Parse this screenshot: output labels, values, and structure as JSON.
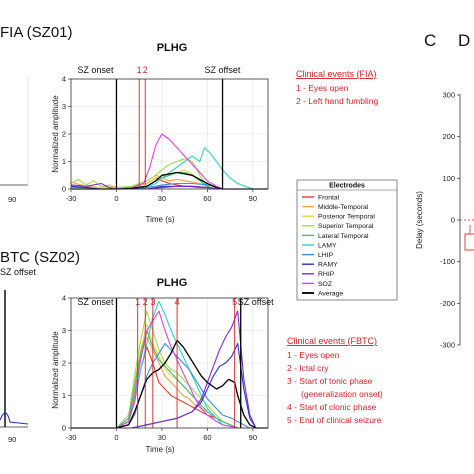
{
  "panel_titles": {
    "top": "FIA (SZ01)",
    "bottom": "BTC (SZ02)",
    "c_letter": "C",
    "c_partial": "D"
  },
  "left_fragments": {
    "top_tick": "90",
    "bottom_tick": "90",
    "bottom_marker": "SZ offset"
  },
  "colors": {
    "event_red": "#d61f26",
    "axis": "#333333",
    "grid": "#e2e2e2"
  },
  "clinical_events": [
    {
      "title": "Clinical events (FIA)",
      "items": [
        "1 - Eyes open",
        "2 - Left hand fumbling"
      ]
    },
    {
      "title": "Clinical events (FBTC)",
      "items": [
        "1 - Eyes open",
        "2 - Ictal cry",
        "3 - Start of tonic phase",
        "(generalization onset)",
        "4 - Start of clonic phase",
        "5 - End of clinical seizure"
      ]
    }
  ],
  "legend": {
    "title": "Electrodes",
    "items": [
      {
        "name": "Frontal",
        "color": "#e8392c"
      },
      {
        "name": "Middle-Temporal",
        "color": "#f7a24b"
      },
      {
        "name": "Posterior Temporal",
        "color": "#f2d63b"
      },
      {
        "name": "Superior Temporal",
        "color": "#a7d84a"
      },
      {
        "name": "Lateral Temporal",
        "color": "#33c27a"
      },
      {
        "name": "LAMY",
        "color": "#2fd4c8"
      },
      {
        "name": "LHIP",
        "color": "#3c8ee0"
      },
      {
        "name": "RAMY",
        "color": "#2432c9"
      },
      {
        "name": "RHIP",
        "color": "#7d2ad6"
      },
      {
        "name": "SOZ",
        "color": "#e040e8"
      },
      {
        "name": "Average",
        "color": "#000000"
      }
    ]
  },
  "chart_data": [
    {
      "type": "line",
      "title": "PLHG",
      "xlabel": "Time (s)",
      "ylabel": "Normalized amplitude",
      "xlim": [
        -30,
        100
      ],
      "ylim": [
        0,
        4
      ],
      "xticks": [
        -30,
        0,
        30,
        60,
        90
      ],
      "yticks": [
        0,
        1,
        2,
        3,
        4
      ],
      "grid": true,
      "vlines": [
        {
          "label": "SZ onset",
          "x": 0,
          "color": "#000000"
        },
        {
          "label": "SZ offset",
          "x": 70,
          "color": "#000000"
        }
      ],
      "events": [
        {
          "label": "1",
          "x": 15
        },
        {
          "label": "2",
          "x": 19
        }
      ],
      "series": [
        {
          "name": "Frontal",
          "x": [
            -30,
            -10,
            0,
            10,
            20,
            26,
            30,
            35,
            40,
            45,
            50,
            55,
            60,
            66,
            70,
            80,
            100
          ],
          "values": [
            0,
            0,
            0,
            0.05,
            0.2,
            0.4,
            0.3,
            0.2,
            0.15,
            0.1,
            0.08,
            0.05,
            0.05,
            0,
            0,
            0,
            0
          ]
        },
        {
          "name": "Middle-Temporal",
          "x": [
            -30,
            -20,
            -10,
            -5,
            0,
            10,
            20,
            26,
            30,
            35,
            40,
            45,
            50,
            55,
            60,
            66,
            70,
            80,
            100
          ],
          "values": [
            0.25,
            0.1,
            0.05,
            0.15,
            0.05,
            0.05,
            0.3,
            0.5,
            0.4,
            0.3,
            0.35,
            0.3,
            0.25,
            0.2,
            0.1,
            0,
            0,
            0,
            0
          ]
        },
        {
          "name": "Posterior Temporal",
          "x": [
            -30,
            -20,
            -10,
            0,
            10,
            20,
            26,
            30,
            35,
            40,
            45,
            50,
            55,
            60,
            66,
            70,
            80,
            100
          ],
          "values": [
            0.1,
            0.05,
            0.05,
            0,
            0.05,
            0.2,
            0.4,
            0.5,
            0.5,
            0.6,
            0.7,
            0.55,
            0.3,
            0.1,
            0,
            0,
            0,
            0
          ]
        },
        {
          "name": "Superior Temporal",
          "x": [
            -30,
            -25,
            -20,
            -15,
            -10,
            0,
            10,
            20,
            26,
            30,
            35,
            40,
            45,
            50,
            55,
            60,
            66,
            70,
            80,
            100
          ],
          "values": [
            0.2,
            0.35,
            0.15,
            0.3,
            0.1,
            0.05,
            0.1,
            0.3,
            0.5,
            0.7,
            0.9,
            1.0,
            1.1,
            1.0,
            0.5,
            0.1,
            0,
            0,
            0,
            0
          ]
        },
        {
          "name": "Lateral Temporal",
          "x": [
            -30,
            -20,
            -10,
            0,
            10,
            20,
            26,
            30,
            35,
            40,
            45,
            50,
            55,
            60,
            66,
            70,
            80,
            100
          ],
          "values": [
            0.05,
            0.05,
            0,
            0,
            0.05,
            0.1,
            0.3,
            0.4,
            0.5,
            0.6,
            0.6,
            0.5,
            0.3,
            0.1,
            0,
            0,
            0,
            0
          ]
        },
        {
          "name": "LAMY",
          "x": [
            -30,
            -10,
            0,
            10,
            20,
            26,
            30,
            35,
            40,
            45,
            50,
            55,
            58,
            62,
            66,
            70,
            75,
            80,
            85,
            90,
            100
          ],
          "values": [
            0,
            0,
            0,
            0,
            0.05,
            0.2,
            0.4,
            0.6,
            0.8,
            1.0,
            1.2,
            1.0,
            1.5,
            1.3,
            1.0,
            0.7,
            0.4,
            0.2,
            0.1,
            0,
            0
          ]
        },
        {
          "name": "LHIP",
          "x": [
            -30,
            -10,
            0,
            10,
            20,
            26,
            30,
            40,
            50,
            60,
            66,
            70,
            80,
            100
          ],
          "values": [
            0,
            0,
            0,
            0,
            0.05,
            0.1,
            0.15,
            0.2,
            0.2,
            0.15,
            0.1,
            0,
            0,
            0
          ]
        },
        {
          "name": "RAMY",
          "x": [
            -30,
            -20,
            -10,
            0,
            10,
            20,
            26,
            30,
            40,
            50,
            60,
            66,
            70,
            80,
            100
          ],
          "values": [
            0.1,
            0.05,
            0,
            0,
            0,
            0,
            0.05,
            0.1,
            0.1,
            0.1,
            0.05,
            0,
            0,
            0,
            0
          ]
        },
        {
          "name": "RHIP",
          "x": [
            -30,
            -20,
            -10,
            -5,
            0,
            10,
            20,
            30,
            40,
            50,
            60,
            66,
            70,
            80,
            100
          ],
          "values": [
            0.15,
            0.1,
            0.2,
            0.05,
            0,
            0,
            0,
            0.05,
            0.1,
            0.1,
            0.05,
            0,
            0,
            0,
            0
          ]
        },
        {
          "name": "SOZ",
          "x": [
            -30,
            -10,
            0,
            10,
            18,
            22,
            26,
            30,
            35,
            40,
            45,
            50,
            55,
            60,
            66,
            70,
            80,
            100
          ],
          "values": [
            0,
            0,
            0,
            0.05,
            0.2,
            0.8,
            1.6,
            2.0,
            1.8,
            1.5,
            1.2,
            0.9,
            0.6,
            0.3,
            0.1,
            0,
            0,
            0
          ]
        },
        {
          "name": "Average",
          "x": [
            -30,
            -10,
            0,
            10,
            20,
            26,
            30,
            35,
            40,
            45,
            50,
            55,
            60,
            66,
            70,
            80,
            100
          ],
          "values": [
            0,
            0,
            0,
            0.02,
            0.1,
            0.3,
            0.5,
            0.55,
            0.6,
            0.55,
            0.5,
            0.35,
            0.2,
            0.05,
            0,
            0,
            0
          ]
        }
      ]
    },
    {
      "type": "line",
      "title": "PLHG",
      "xlabel": "Time (s)",
      "ylabel": "Normalized amplitude",
      "xlim": [
        -30,
        100
      ],
      "ylim": [
        0,
        4
      ],
      "xticks": [
        -30,
        0,
        30,
        60,
        90
      ],
      "yticks": [
        0,
        1,
        2,
        3,
        4
      ],
      "grid": true,
      "vlines": [
        {
          "label": "SZ onset",
          "x": 0,
          "color": "#000000"
        },
        {
          "label": "SZ offset",
          "x": 82,
          "color": "#000000"
        }
      ],
      "events": [
        {
          "label": "1",
          "x": 14
        },
        {
          "label": "2",
          "x": 19
        },
        {
          "label": "3",
          "x": 24
        },
        {
          "label": "4",
          "x": 40
        },
        {
          "label": "5",
          "x": 78
        }
      ],
      "series": [
        {
          "name": "Frontal",
          "x": [
            -30,
            0,
            8,
            12,
            16,
            20,
            24,
            28,
            32,
            36,
            40,
            44,
            48,
            52,
            56,
            60,
            66,
            70,
            80,
            100
          ],
          "values": [
            0,
            0,
            0.2,
            0.8,
            1.8,
            2.5,
            2.0,
            1.4,
            1.2,
            1.0,
            0.9,
            0.8,
            0.7,
            0.6,
            0.5,
            0.4,
            0.3,
            0.2,
            0,
            0
          ]
        },
        {
          "name": "Middle-Temporal",
          "x": [
            -30,
            0,
            8,
            12,
            16,
            20,
            24,
            28,
            32,
            36,
            40,
            44,
            48,
            52,
            56,
            60,
            66,
            70,
            80,
            100
          ],
          "values": [
            0,
            0,
            0.3,
            1.2,
            2.2,
            2.8,
            2.4,
            2.0,
            1.6,
            1.4,
            1.2,
            1.0,
            0.9,
            0.7,
            0.6,
            0.5,
            0.3,
            0.2,
            0,
            0
          ]
        },
        {
          "name": "Posterior Temporal",
          "x": [
            -30,
            0,
            8,
            12,
            16,
            20,
            24,
            28,
            32,
            36,
            40,
            44,
            48,
            52,
            56,
            60,
            66,
            70,
            80,
            100
          ],
          "values": [
            0,
            0,
            0.3,
            1.4,
            2.4,
            3.2,
            2.6,
            2.2,
            1.8,
            1.6,
            1.5,
            1.3,
            1.1,
            0.9,
            0.7,
            0.5,
            0.3,
            0.2,
            0,
            0
          ]
        },
        {
          "name": "Superior Temporal",
          "x": [
            -30,
            0,
            8,
            12,
            16,
            20,
            24,
            28,
            32,
            36,
            40,
            44,
            48,
            52,
            56,
            60,
            66,
            70,
            80,
            100
          ],
          "values": [
            0,
            0,
            0.4,
            1.6,
            2.7,
            3.6,
            3.0,
            2.4,
            2.0,
            1.8,
            1.7,
            1.5,
            1.3,
            1.1,
            0.9,
            0.7,
            0.4,
            0.2,
            0,
            0
          ]
        },
        {
          "name": "Lateral Temporal",
          "x": [
            -30,
            0,
            8,
            12,
            16,
            20,
            24,
            28,
            32,
            36,
            40,
            44,
            48,
            52,
            56,
            60,
            66,
            70,
            80,
            100
          ],
          "values": [
            0,
            0,
            0.3,
            1.3,
            2.3,
            3.0,
            2.5,
            2.1,
            1.9,
            1.7,
            1.5,
            1.3,
            1.1,
            0.9,
            0.7,
            0.5,
            0.3,
            0.2,
            0,
            0
          ]
        },
        {
          "name": "LAMY",
          "x": [
            -30,
            0,
            8,
            12,
            16,
            20,
            24,
            28,
            32,
            36,
            40,
            44,
            48,
            52,
            56,
            60,
            66,
            70,
            80,
            100
          ],
          "values": [
            0,
            0,
            0.2,
            0.9,
            1.8,
            2.6,
            3.4,
            3.9,
            3.5,
            3.0,
            2.6,
            2.2,
            1.8,
            1.4,
            1.0,
            0.6,
            0.3,
            0.1,
            0,
            0
          ]
        },
        {
          "name": "LHIP",
          "x": [
            -30,
            0,
            8,
            12,
            16,
            20,
            24,
            28,
            32,
            36,
            40,
            44,
            48,
            52,
            56,
            60,
            66,
            70,
            76,
            80,
            84,
            88,
            92,
            100
          ],
          "values": [
            0,
            0,
            0.1,
            0.4,
            1.0,
            1.6,
            2.0,
            2.3,
            2.6,
            2.4,
            2.2,
            2.0,
            1.8,
            1.5,
            1.2,
            0.9,
            0.6,
            0.4,
            0.3,
            0.2,
            0.1,
            0,
            0,
            0
          ]
        },
        {
          "name": "RAMY",
          "x": [
            -30,
            0,
            10,
            20,
            30,
            40,
            50,
            56,
            60,
            64,
            68,
            72,
            76,
            80,
            84,
            88,
            92,
            100
          ],
          "values": [
            0,
            0,
            0,
            0.1,
            0.2,
            0.3,
            0.5,
            0.8,
            1.2,
            1.6,
            1.9,
            2.0,
            2.2,
            2.6,
            1.2,
            0.3,
            0,
            0
          ]
        },
        {
          "name": "RHIP",
          "x": [
            -30,
            0,
            10,
            20,
            30,
            40,
            50,
            56,
            60,
            64,
            68,
            72,
            76,
            80,
            84,
            88,
            92,
            100
          ],
          "values": [
            0,
            0,
            0,
            0.1,
            0.2,
            0.3,
            0.5,
            0.9,
            1.4,
            1.9,
            2.4,
            2.8,
            3.1,
            3.6,
            1.5,
            0.4,
            0,
            0
          ]
        },
        {
          "name": "SOZ",
          "x": [
            -30,
            0,
            8,
            12,
            16,
            20,
            24,
            28,
            32,
            36,
            40,
            44,
            48,
            52,
            56,
            60,
            66,
            70,
            80,
            100
          ],
          "values": [
            0,
            0,
            0.2,
            1.0,
            2.1,
            3.0,
            3.3,
            3.6,
            3.0,
            2.5,
            2.1,
            1.7,
            1.3,
            0.9,
            0.6,
            0.4,
            0.2,
            0.1,
            0,
            0
          ]
        },
        {
          "name": "Average",
          "x": [
            -30,
            0,
            8,
            12,
            16,
            20,
            24,
            28,
            32,
            36,
            40,
            44,
            48,
            52,
            56,
            60,
            66,
            70,
            74,
            78,
            80,
            84,
            88,
            92,
            100
          ],
          "values": [
            0,
            0,
            0.1,
            0.5,
            1.0,
            1.5,
            1.7,
            1.8,
            2.0,
            2.3,
            2.7,
            2.5,
            2.2,
            1.9,
            1.6,
            1.4,
            1.2,
            1.3,
            1.5,
            1.4,
            1.0,
            0.4,
            0.1,
            0,
            0
          ]
        }
      ]
    },
    {
      "type": "scatter",
      "ylabel": "Delay (seconds)",
      "ylim": [
        -300,
        300
      ],
      "yticks": [
        300,
        200,
        100,
        0,
        -100,
        -200,
        -300
      ],
      "partial": true
    }
  ]
}
